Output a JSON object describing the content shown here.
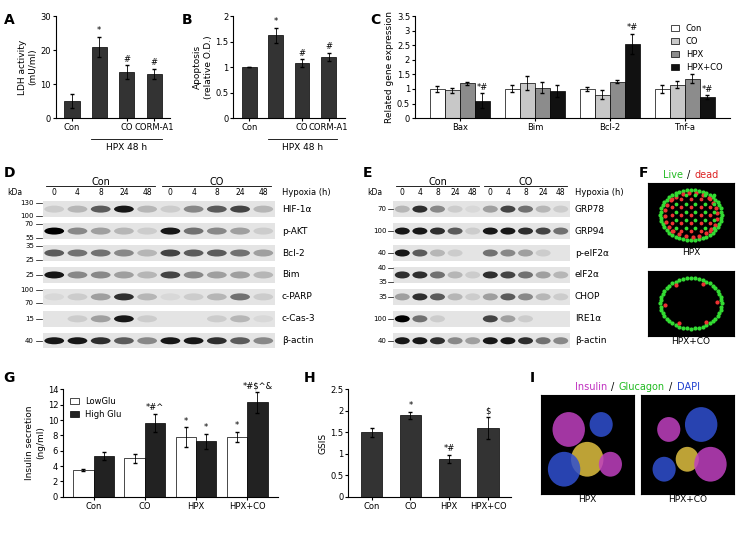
{
  "chart_data": [
    {
      "panel": "A",
      "type": "bar",
      "categories": [
        "Con",
        null,
        "CO",
        "CORM-A1"
      ],
      "values": [
        5,
        21,
        13.5,
        13
      ],
      "errors": [
        2,
        3,
        2,
        1.5
      ],
      "annotations": [
        null,
        "*",
        "#",
        "#"
      ],
      "color": "#333333",
      "ylabel": "LDH activity\n(mU/ml)",
      "ylim": [
        0,
        30
      ],
      "yticks": [
        0,
        10,
        20,
        30
      ],
      "bracket": {
        "label": "HPX 48 h",
        "from": 1,
        "to": 3
      }
    },
    {
      "panel": "B",
      "type": "bar",
      "categories": [
        "Con",
        null,
        "CO",
        "CORM-A1"
      ],
      "values": [
        1,
        1.62,
        1.08,
        1.2
      ],
      "errors": [
        0,
        0.15,
        0.07,
        0.08
      ],
      "annotations": [
        null,
        "*",
        "#",
        "#"
      ],
      "color": "#333333",
      "ylabel": "Apoptosis\n(relative O.D.)",
      "ylim": [
        0,
        2
      ],
      "yticks": [
        0,
        0.5,
        1,
        1.5,
        2
      ],
      "bracket": {
        "label": "HPX 48 h",
        "from": 1,
        "to": 3
      }
    },
    {
      "panel": "C",
      "type": "bar",
      "categories": [
        "Bax",
        "Bim",
        "Bcl-2",
        "Tnf-a"
      ],
      "ylabel": "Related gene expression",
      "ylim": [
        0,
        3.5
      ],
      "yticks": [
        0,
        0.5,
        1,
        1.5,
        2,
        2.5,
        3,
        3.5
      ],
      "legend": "upper right",
      "series": [
        {
          "name": "Con",
          "color": "#ffffff",
          "values": [
            1.0,
            1.0,
            1.0,
            1.0
          ],
          "errors": [
            0.1,
            0.12,
            0.07,
            0.15
          ]
        },
        {
          "name": "CO",
          "color": "#c8c8c8",
          "values": [
            0.95,
            1.2,
            0.8,
            1.15
          ],
          "errors": [
            0.1,
            0.25,
            0.15,
            0.12
          ]
        },
        {
          "name": "HPX",
          "color": "#8c8c8c",
          "values": [
            1.2,
            1.05,
            1.25,
            1.35
          ],
          "errors": [
            0.05,
            0.2,
            0.05,
            0.15
          ]
        },
        {
          "name": "HPX+CO",
          "color": "#111111",
          "values": [
            0.6,
            0.92,
            2.55,
            0.72
          ],
          "errors": [
            0.25,
            0.2,
            0.35,
            0.07
          ],
          "annotations": [
            "*#",
            null,
            "*#",
            "*#"
          ]
        }
      ]
    },
    {
      "panel": "G",
      "type": "bar",
      "categories": [
        "Con",
        "CO",
        "HPX",
        "HPX+CO"
      ],
      "ylabel": "Insulin secretion\n(ng/ml)",
      "ylim": [
        0,
        14
      ],
      "yticks": [
        0,
        2,
        4,
        6,
        8,
        10,
        12,
        14
      ],
      "legend": "upper left",
      "series": [
        {
          "name": "LowGlu",
          "color": "#ffffff",
          "values": [
            3.5,
            5.0,
            7.8,
            7.8
          ],
          "errors": [
            0.1,
            0.6,
            1.3,
            0.7
          ],
          "annotations": [
            null,
            null,
            "*",
            "*"
          ]
        },
        {
          "name": "High Glu",
          "color": "#222222",
          "values": [
            5.3,
            9.6,
            7.2,
            12.3
          ],
          "errors": [
            0.5,
            1.2,
            1.0,
            1.4
          ],
          "annotations": [
            null,
            "*#^",
            "*",
            "*#$^&"
          ]
        }
      ]
    },
    {
      "panel": "H",
      "type": "bar",
      "categories": [
        "Con",
        "CO",
        "HPX",
        "HPX+CO"
      ],
      "values": [
        1.5,
        1.9,
        0.88,
        1.6
      ],
      "errors": [
        0.1,
        0.08,
        0.1,
        0.25
      ],
      "annotations": [
        null,
        "*",
        "*#",
        "$"
      ],
      "color": "#333333",
      "ylabel": "GSIS",
      "ylim": [
        0,
        2.5
      ],
      "yticks": [
        0,
        0.5,
        1,
        1.5,
        2,
        2.5
      ]
    }
  ],
  "blots": [
    {
      "panel": "D",
      "kda_label": "kDa",
      "groups": [
        "Con",
        "CO"
      ],
      "timepoints": [
        0,
        4,
        8,
        24,
        48
      ],
      "time_label": "Hypoxia (h)",
      "rows": [
        {
          "label": "HIF-1α",
          "kda": [
            130,
            100
          ],
          "intensity": [
            0.1,
            0.2,
            0.6,
            0.9,
            0.2,
            0.1,
            0.4,
            0.6,
            0.7,
            0.2
          ]
        },
        {
          "label": "p-AKT",
          "kda": [
            70,
            55
          ],
          "intensity": [
            1.0,
            0.4,
            0.3,
            0.2,
            0.1,
            0.9,
            0.5,
            0.4,
            0.3,
            0.1
          ]
        },
        {
          "label": "Bcl-2",
          "kda": [
            35,
            25
          ],
          "intensity": [
            0.6,
            0.5,
            0.5,
            0.4,
            0.2,
            0.7,
            0.6,
            0.6,
            0.5,
            0.3
          ]
        },
        {
          "label": "Bim",
          "kda": [
            25
          ],
          "intensity": [
            0.9,
            0.4,
            0.4,
            0.3,
            0.2,
            0.7,
            0.4,
            0.3,
            0.3,
            0.2
          ]
        },
        {
          "label": "c-PARP",
          "kda": [
            100,
            70
          ],
          "intensity": [
            0.05,
            0.1,
            0.3,
            0.8,
            0.2,
            0.05,
            0.1,
            0.2,
            0.5,
            0.1
          ]
        },
        {
          "label": "c-Cas-3",
          "kda": [
            15
          ],
          "intensity": [
            0.0,
            0.1,
            0.3,
            0.9,
            0.1,
            0.0,
            0.0,
            0.1,
            0.2,
            0.05
          ]
        },
        {
          "label": "β-actin",
          "kda": [
            40
          ],
          "intensity": [
            0.9,
            0.9,
            0.8,
            0.6,
            0.4,
            0.9,
            0.9,
            0.8,
            0.6,
            0.4
          ]
        }
      ]
    },
    {
      "panel": "E",
      "kda_label": "kDa",
      "groups": [
        "Con",
        "CO"
      ],
      "timepoints": [
        0,
        4,
        8,
        24,
        48
      ],
      "time_label": "Hypoxia (h)",
      "rows": [
        {
          "label": "GRP78",
          "kda": [
            70
          ],
          "intensity": [
            0.2,
            0.8,
            0.4,
            0.1,
            0.05,
            0.3,
            0.7,
            0.5,
            0.2,
            0.1
          ]
        },
        {
          "label": "GRP94",
          "kda": [
            100
          ],
          "intensity": [
            0.9,
            0.9,
            0.8,
            0.6,
            0.1,
            0.9,
            0.9,
            0.8,
            0.7,
            0.5
          ]
        },
        {
          "label": "p-eIF2α",
          "kda": [
            40
          ],
          "intensity": [
            0.9,
            0.6,
            0.2,
            0.1,
            0.0,
            0.5,
            0.4,
            0.3,
            0.1,
            0.0
          ]
        },
        {
          "label": "eIF2α",
          "kda": [
            40,
            35
          ],
          "intensity": [
            0.8,
            0.8,
            0.5,
            0.2,
            0.1,
            0.8,
            0.7,
            0.5,
            0.3,
            0.2
          ]
        },
        {
          "label": "CHOP",
          "kda": [
            35
          ],
          "intensity": [
            0.3,
            0.8,
            0.6,
            0.2,
            0.1,
            0.3,
            0.6,
            0.4,
            0.2,
            0.1
          ]
        },
        {
          "label": "IRE1α",
          "kda": [
            100
          ],
          "intensity": [
            1.0,
            0.5,
            0.1,
            0.0,
            0.0,
            0.7,
            0.3,
            0.1,
            0.0,
            0.0
          ]
        },
        {
          "label": "β-actin",
          "kda": [
            40
          ],
          "intensity": [
            0.9,
            0.9,
            0.8,
            0.4,
            0.3,
            0.9,
            0.9,
            0.8,
            0.5,
            0.4
          ]
        }
      ]
    }
  ],
  "images": [
    {
      "panel": "F",
      "title_parts": [
        {
          "text": "Live",
          "color": "#22bb22"
        },
        {
          "text": "/",
          "color": "#000000"
        },
        {
          "text": "dead",
          "color": "#dd2222"
        }
      ],
      "labels": [
        "HPX",
        "HPX+CO"
      ]
    },
    {
      "panel": "I",
      "title_parts": [
        {
          "text": "Insulin",
          "color": "#c030c0"
        },
        {
          "text": "/",
          "color": "#000000"
        },
        {
          "text": "Glucagon",
          "color": "#22bb22"
        },
        {
          "text": "/",
          "color": "#000000"
        },
        {
          "text": "DAPI",
          "color": "#2040d0"
        }
      ],
      "labels": [
        "HPX",
        "HPX+CO"
      ]
    }
  ]
}
